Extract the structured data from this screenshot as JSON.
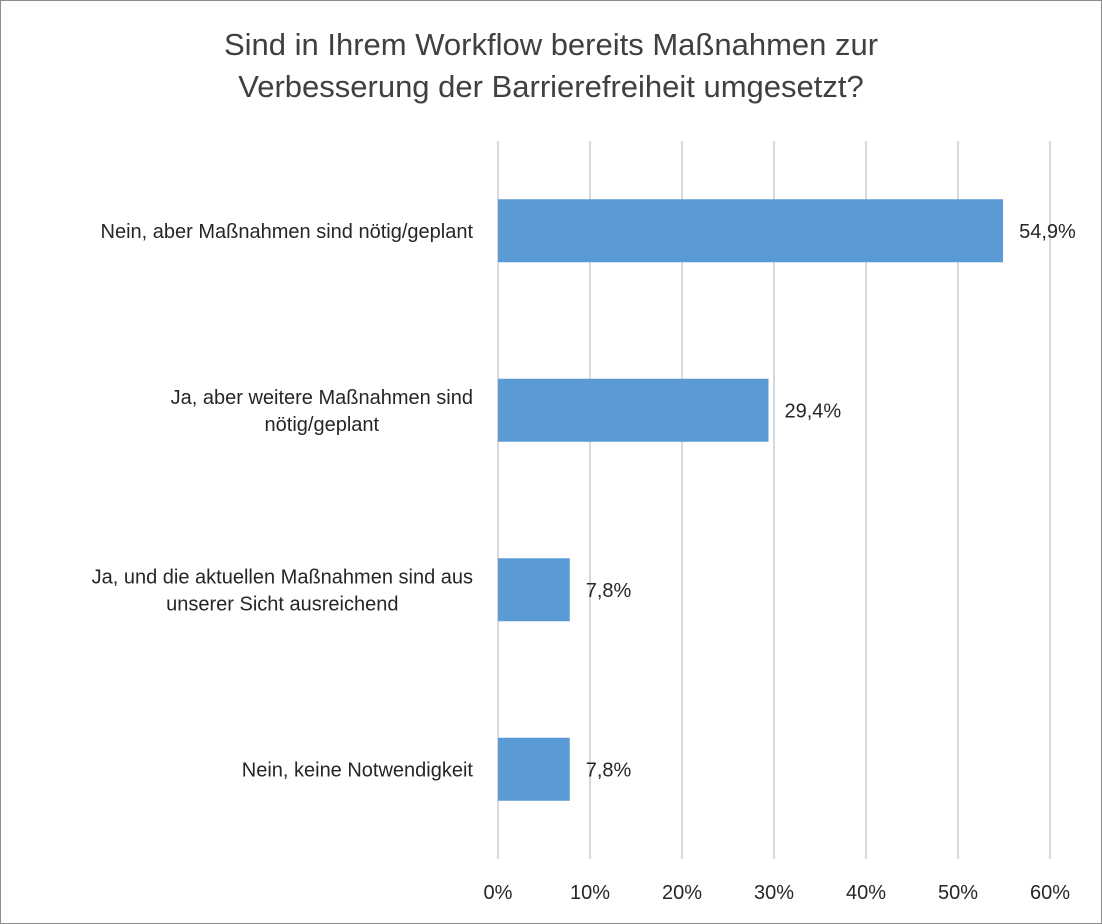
{
  "chart_data": {
    "type": "bar",
    "orientation": "horizontal",
    "title_lines": [
      "Sind in Ihrem Workflow bereits Maßnahmen zur",
      "Verbesserung der Barrierefreiheit umgesetzt?"
    ],
    "categories": [
      {
        "label_lines": [
          "Nein, aber Maßnahmen sind nötig/geplant"
        ],
        "value": 54.9,
        "data_label": "54,9%"
      },
      {
        "label_lines": [
          "Ja, aber weitere Maßnahmen sind",
          "nötig/geplant"
        ],
        "value": 29.4,
        "data_label": "29,4%"
      },
      {
        "label_lines": [
          "Ja, und die aktuellen Maßnahmen sind aus",
          "unserer Sicht ausreichend"
        ],
        "value": 7.8,
        "data_label": "7,8%"
      },
      {
        "label_lines": [
          "Nein, keine Notwendigkeit"
        ],
        "value": 7.8,
        "data_label": "7,8%"
      }
    ],
    "xlim": [
      0,
      60
    ],
    "x_ticks": [
      0,
      10,
      20,
      30,
      40,
      50,
      60
    ],
    "x_tick_labels": [
      "0%",
      "10%",
      "20%",
      "30%",
      "40%",
      "50%",
      "60%"
    ],
    "grid": true,
    "legend": "none",
    "bar_color": "#5b9bd5",
    "xlabel": "",
    "ylabel": ""
  }
}
